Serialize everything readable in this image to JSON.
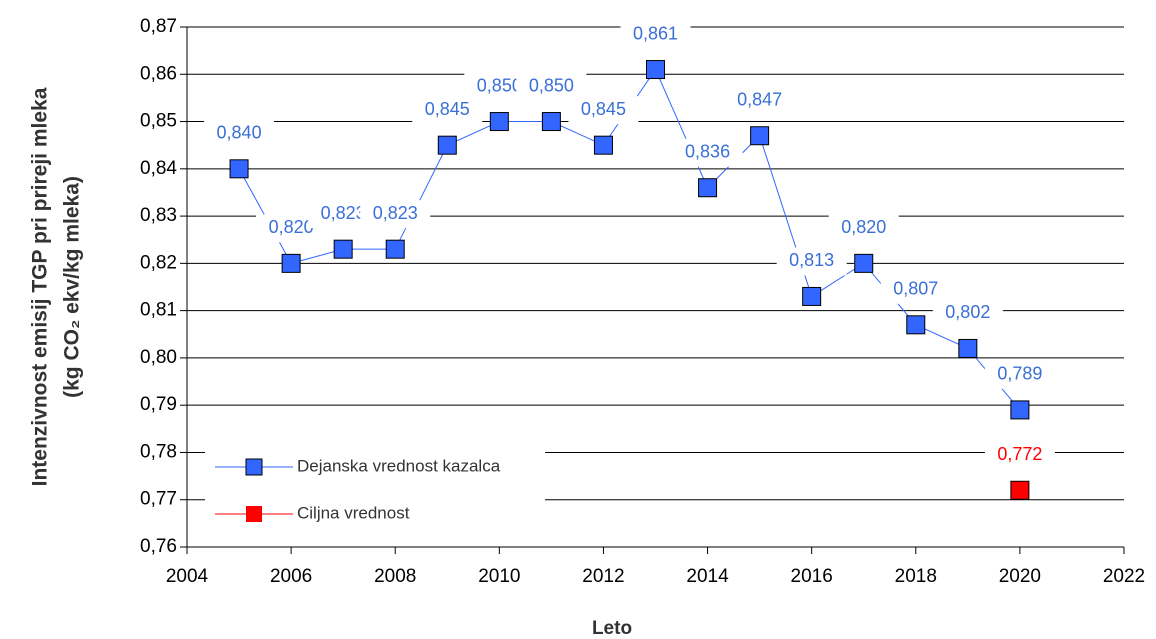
{
  "chart_data": {
    "type": "line",
    "xlabel": "Leto",
    "ylabel": [
      "Intenzivnost emisij TGP pri prireji mleka",
      "(kg CO₂ ekv/kg mleka)"
    ],
    "xlim": [
      2004,
      2022
    ],
    "xticks": [
      2004,
      2006,
      2008,
      2010,
      2012,
      2014,
      2016,
      2018,
      2020,
      2022
    ],
    "ylim": [
      0.76,
      0.87
    ],
    "yticks": [
      {
        "value": 0.76,
        "label": "0,76"
      },
      {
        "value": 0.77,
        "label": "0,77"
      },
      {
        "value": 0.78,
        "label": "0,78"
      },
      {
        "value": 0.79,
        "label": "0,79"
      },
      {
        "value": 0.8,
        "label": "0,80"
      },
      {
        "value": 0.81,
        "label": "0,81"
      },
      {
        "value": 0.82,
        "label": "0,82"
      },
      {
        "value": 0.83,
        "label": "0,83"
      },
      {
        "value": 0.84,
        "label": "0,84"
      },
      {
        "value": 0.85,
        "label": "0,85"
      },
      {
        "value": 0.86,
        "label": "0,86"
      },
      {
        "value": 0.87,
        "label": "0,87"
      }
    ],
    "grid": true,
    "legend": "lower left",
    "series": [
      {
        "name": "Dejanska vrednost kazalca",
        "color": "#3366ff",
        "label_color": "#3a6fd8",
        "x": [
          2005,
          2006,
          2007,
          2008,
          2009,
          2010,
          2011,
          2012,
          2013,
          2014,
          2015,
          2016,
          2017,
          2018,
          2019,
          2020
        ],
        "values": [
          0.84,
          0.82,
          0.823,
          0.823,
          0.845,
          0.85,
          0.85,
          0.845,
          0.861,
          0.836,
          0.847,
          0.813,
          0.82,
          0.807,
          0.802,
          0.789
        ],
        "value_labels": [
          "0,840",
          "0,820",
          "0,823",
          "0,823",
          "0,845",
          "0,850",
          "0,850",
          "0,845",
          "0,861",
          "0,836",
          "0,847",
          "0,813",
          "0,820",
          "0,807",
          "0,802",
          "0,789"
        ]
      },
      {
        "name": "Ciljna vrednost",
        "color": "#ff0000",
        "label_color": "#ff0000",
        "x": [
          2020
        ],
        "values": [
          0.772
        ],
        "value_labels": [
          "0,772"
        ]
      }
    ]
  }
}
